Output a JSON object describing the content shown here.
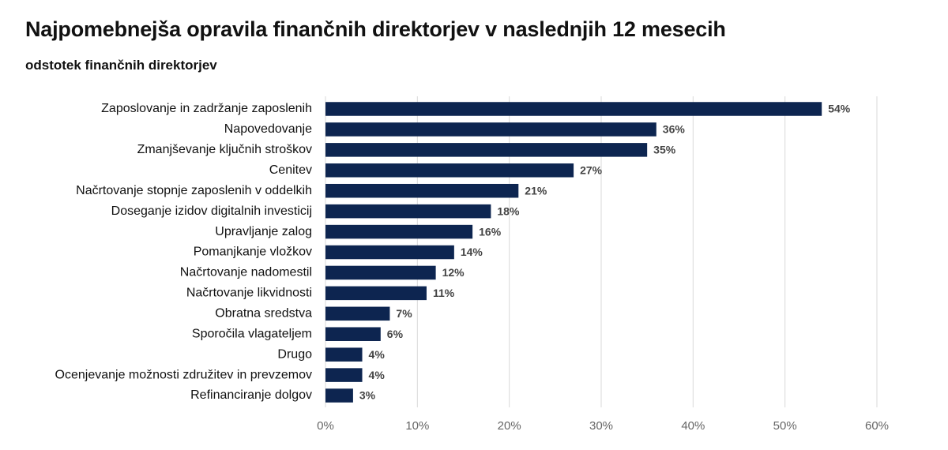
{
  "chart_data": {
    "type": "bar",
    "orientation": "horizontal",
    "title": "Najpomebnejša opravila finančnih direktorjev v naslednjih 12 mesecih",
    "subtitle": "odstotek finančnih direktorjev",
    "categories": [
      "Zaposlovanje in zadržanje zaposlenih",
      "Napovedovanje",
      "Zmanjševanje ključnih stroškov",
      "Cenitev",
      "Načrtovanje stopnje zaposlenih v oddelkih",
      "Doseganje izidov digitalnih investicij",
      "Upravljanje zalog",
      "Pomanjkanje vložkov",
      "Načrtovanje nadomestil",
      "Načrtovanje likvidnosti",
      "Obratna sredstva",
      "Sporočila vlagateljem",
      "Drugo",
      "Ocenjevanje možnosti združitev in prevzemov",
      "Refinanciranje dolgov"
    ],
    "values": [
      54,
      36,
      35,
      27,
      21,
      18,
      16,
      14,
      12,
      11,
      7,
      6,
      4,
      4,
      3
    ],
    "value_labels": [
      "54%",
      "36%",
      "35%",
      "27%",
      "21%",
      "18%",
      "16%",
      "14%",
      "12%",
      "11%",
      "7%",
      "6%",
      "4%",
      "4%",
      "3%"
    ],
    "xlim": [
      0,
      60
    ],
    "xticks": [
      0,
      10,
      20,
      30,
      40,
      50,
      60
    ],
    "xtick_labels": [
      "0%",
      "10%",
      "20%",
      "30%",
      "40%",
      "50%",
      "60%"
    ],
    "grid": "vertical",
    "bar_color": "#0d2550"
  }
}
